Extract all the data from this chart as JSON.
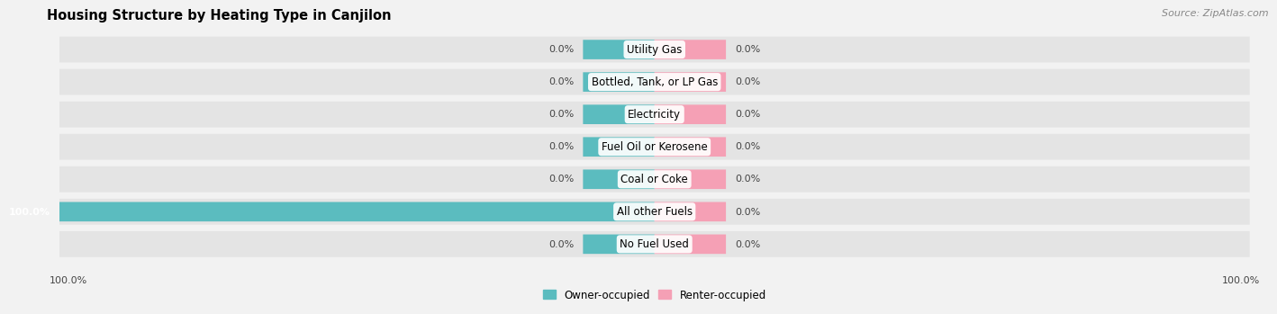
{
  "title": "Housing Structure by Heating Type in Canjilon",
  "source": "Source: ZipAtlas.com",
  "categories": [
    "Utility Gas",
    "Bottled, Tank, or LP Gas",
    "Electricity",
    "Fuel Oil or Kerosene",
    "Coal or Coke",
    "All other Fuels",
    "No Fuel Used"
  ],
  "owner_values": [
    0.0,
    0.0,
    0.0,
    0.0,
    0.0,
    100.0,
    0.0
  ],
  "renter_values": [
    0.0,
    0.0,
    0.0,
    0.0,
    0.0,
    0.0,
    0.0
  ],
  "owner_color": "#5bbcbf",
  "renter_color": "#f5a0b5",
  "background_color": "#f2f2f2",
  "row_bg_color": "#e4e4e4",
  "bar_height": 0.58,
  "stub_size": 12,
  "xlim_left": -100,
  "xlim_right": 100,
  "axis_label_left": "100.0%",
  "axis_label_right": "100.0%",
  "title_fontsize": 10.5,
  "source_fontsize": 8,
  "label_fontsize": 8,
  "category_fontsize": 8.5,
  "legend_fontsize": 8.5,
  "label_color": "#444444"
}
